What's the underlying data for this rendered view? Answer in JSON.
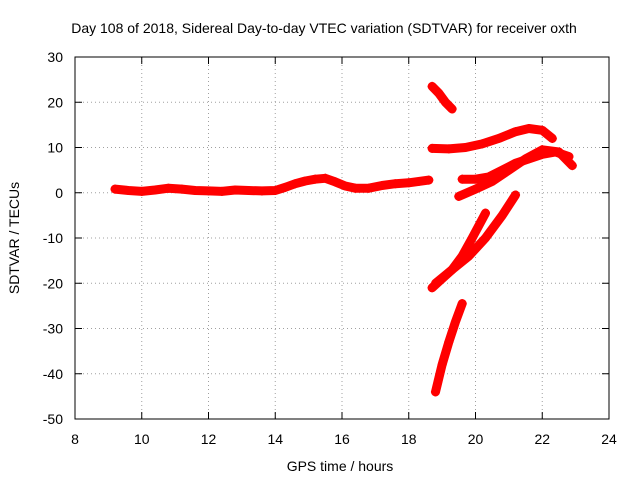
{
  "chart_data": {
    "type": "scatter",
    "title": "Day 108 of 2018, Sidereal Day-to-day VTEC variation (SDTVAR) for receiver oxth",
    "xlabel": "GPS time / hours",
    "ylabel": "SDTVAR / TECUs",
    "xlim": [
      8,
      24
    ],
    "ylim": [
      -50,
      30
    ],
    "xticks": [
      8,
      10,
      12,
      14,
      16,
      18,
      20,
      22,
      24
    ],
    "yticks": [
      -50,
      -40,
      -30,
      -20,
      -10,
      0,
      10,
      20,
      30
    ],
    "grid": true,
    "marker": "plus",
    "color": "#ff0000",
    "series": [
      {
        "x": [
          9.2,
          9.6,
          10.0,
          10.4,
          10.8,
          11.2,
          11.6,
          12.0,
          12.4,
          12.8,
          13.2,
          13.6,
          14.0,
          14.3,
          14.6,
          14.9,
          15.2,
          15.5,
          15.8,
          16.1,
          16.4,
          16.8,
          17.2,
          17.6,
          18.0,
          18.3,
          18.6
        ],
        "y": [
          0.8,
          0.5,
          0.3,
          0.6,
          1.0,
          0.8,
          0.5,
          0.4,
          0.3,
          0.6,
          0.5,
          0.4,
          0.5,
          1.2,
          2.0,
          2.6,
          3.0,
          3.2,
          2.4,
          1.5,
          1.0,
          1.0,
          1.6,
          2.0,
          2.2,
          2.5,
          2.8
        ]
      },
      {
        "x": [
          18.7,
          18.9,
          19.1,
          19.3
        ],
        "y": [
          23.5,
          22.0,
          20.0,
          18.5
        ]
      },
      {
        "x": [
          18.7,
          19.2,
          19.7,
          20.2,
          20.7,
          21.2,
          21.6,
          22.0,
          22.3
        ],
        "y": [
          9.8,
          9.7,
          10.0,
          10.8,
          12.0,
          13.5,
          14.2,
          13.8,
          12.0
        ]
      },
      {
        "x": [
          19.6,
          20.0,
          20.4,
          20.8,
          21.2,
          21.6,
          22.0,
          22.4,
          22.8
        ],
        "y": [
          3.0,
          3.0,
          3.5,
          5.0,
          6.5,
          7.5,
          8.5,
          9.0,
          8.0
        ]
      },
      {
        "x": [
          19.5,
          20.0,
          20.5,
          21.0,
          21.5,
          22.0,
          22.5,
          22.9
        ],
        "y": [
          -0.8,
          0.8,
          2.5,
          5.0,
          7.5,
          9.5,
          9.0,
          6.0
        ]
      },
      {
        "x": [
          18.7,
          19.0,
          19.3,
          19.6,
          19.9,
          20.3
        ],
        "y": [
          -21.0,
          -19.0,
          -17.0,
          -14.0,
          -10.0,
          -4.5
        ]
      },
      {
        "x": [
          18.8,
          19.3,
          19.8,
          20.3,
          20.8,
          21.2
        ],
        "y": [
          -20.0,
          -17.0,
          -14.0,
          -10.0,
          -5.0,
          -0.5
        ]
      },
      {
        "x": [
          18.8,
          19.0,
          19.2,
          19.4,
          19.6
        ],
        "y": [
          -44.0,
          -38.0,
          -33.0,
          -28.5,
          -24.5
        ]
      }
    ]
  }
}
